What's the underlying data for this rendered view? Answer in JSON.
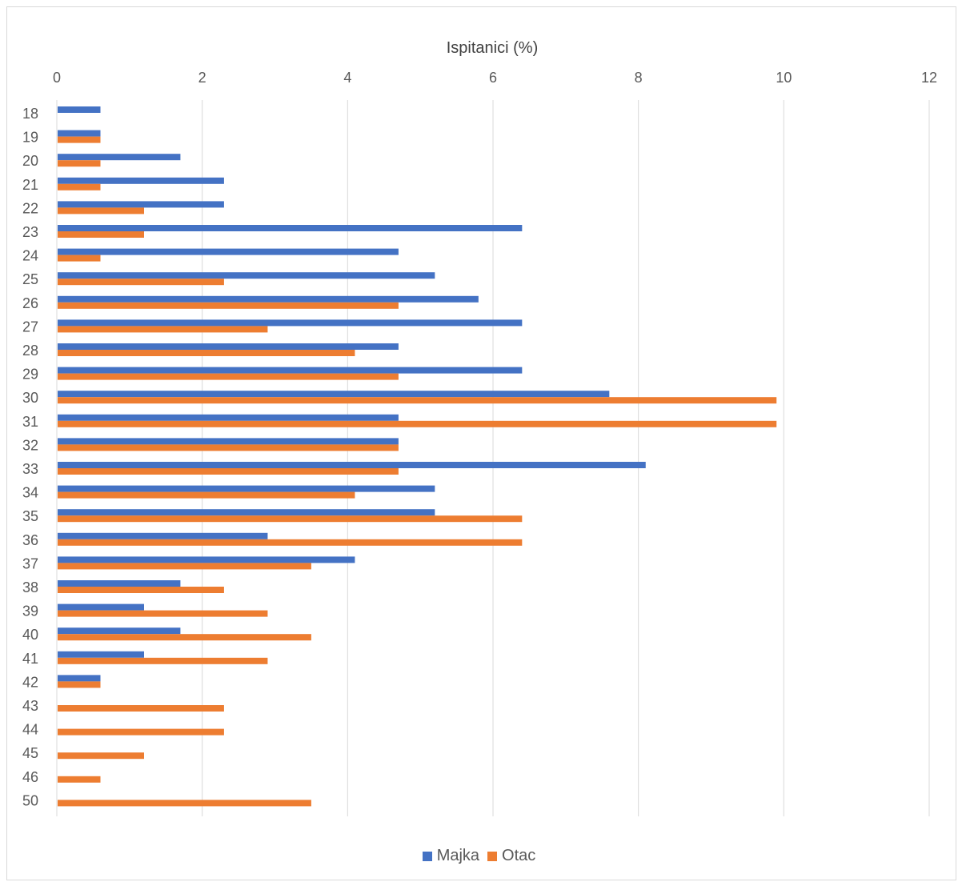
{
  "chart_data": {
    "type": "bar",
    "orientation": "horizontal",
    "title": "",
    "xlabel": "Ispitanici (%)",
    "ylabel": "",
    "xlim": [
      0,
      12
    ],
    "x_ticks": [
      "0",
      "2",
      "4",
      "6",
      "8",
      "10",
      "12"
    ],
    "grid": "vertical",
    "x_axis_position": "top",
    "legend_position": "bottom",
    "categories": [
      "18",
      "19",
      "20",
      "21",
      "22",
      "23",
      "24",
      "25",
      "26",
      "27",
      "28",
      "29",
      "30",
      "31",
      "32",
      "33",
      "34",
      "35",
      "36",
      "37",
      "38",
      "39",
      "40",
      "41",
      "42",
      "43",
      "44",
      "45",
      "46",
      "50"
    ],
    "series": [
      {
        "name": "Majka",
        "color": "#4472c4",
        "values": [
          0.6,
          0.6,
          1.7,
          2.3,
          2.3,
          6.4,
          4.7,
          5.2,
          5.8,
          6.4,
          4.7,
          6.4,
          7.6,
          4.7,
          4.7,
          8.1,
          5.2,
          5.2,
          2.9,
          4.1,
          1.7,
          1.2,
          1.7,
          1.2,
          0.6,
          0,
          0,
          0,
          0,
          0
        ]
      },
      {
        "name": "Otac",
        "color": "#ed7d31",
        "values": [
          0,
          0.6,
          0.6,
          0.6,
          1.2,
          1.2,
          0.6,
          2.3,
          4.7,
          2.9,
          4.1,
          4.7,
          9.9,
          9.9,
          4.7,
          4.7,
          4.1,
          6.4,
          6.4,
          3.5,
          2.3,
          2.9,
          3.5,
          2.9,
          0.6,
          2.3,
          2.3,
          1.2,
          0.6,
          3.5
        ]
      }
    ]
  }
}
